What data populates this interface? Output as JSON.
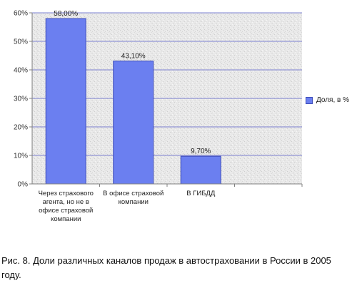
{
  "chart_data": {
    "type": "bar",
    "categories": [
      "Через страхового агента, но не в офисе страховой компании",
      "В офисе страховой компании",
      "В ГИБДД"
    ],
    "series": [
      {
        "name": "Доля, в %",
        "values": [
          58.0,
          43.1,
          9.7
        ]
      }
    ],
    "data_labels": [
      "58,00%",
      "43,10%",
      "9,70%"
    ],
    "yticks": [
      "0%",
      "10%",
      "20%",
      "30%",
      "40%",
      "50%",
      "60%"
    ],
    "ylim": [
      0,
      60
    ],
    "grid": true,
    "legend_position": "right",
    "bar_color": "#6b7ff0",
    "bar_edge_color": "#3c4bb8"
  },
  "caption": "Рис. 8. Доли различных каналов продаж в автостраховании в России в 2005 году."
}
